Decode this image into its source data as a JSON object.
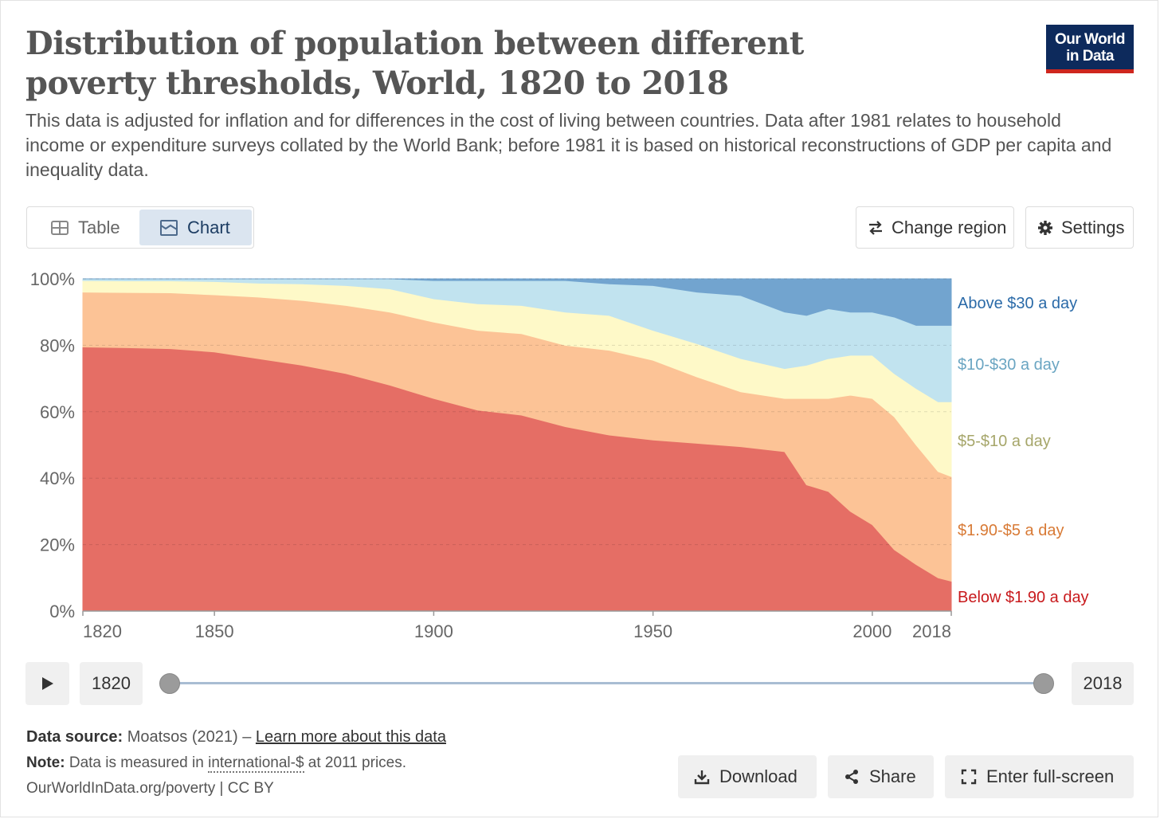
{
  "header": {
    "title": "Distribution of population between different poverty thresholds, World, 1820 to 2018",
    "subtitle": "This data is adjusted for inflation and for differences in the cost of living between countries. Data after 1981 relates to household income or expenditure surveys collated by the World Bank; before 1981 it is based on historical reconstructions of GDP per capita and inequality data.",
    "logo_line1": "Our World",
    "logo_line2": "in Data"
  },
  "tabs": {
    "table": "Table",
    "chart": "Chart"
  },
  "controls": {
    "change_region": "Change region",
    "settings": "Settings"
  },
  "timeline": {
    "start": "1820",
    "end": "2018"
  },
  "footer": {
    "source_label": "Data source:",
    "source_text": "Moatsos (2021) –",
    "learn_more": "Learn more about this data",
    "note_label": "Note:",
    "note_pre": "Data is measured in",
    "note_link": "international-$",
    "note_post": "at 2011 prices.",
    "url": "OurWorldInData.org/poverty | CC BY",
    "download": "Download",
    "share": "Share",
    "fullscreen": "Enter full-screen"
  },
  "icons": [
    "table-icon",
    "chart-icon",
    "swap-arrows-icon",
    "gear-icon",
    "play-icon",
    "download-icon",
    "share-icon",
    "fullscreen-icon"
  ],
  "chart_data": {
    "type": "area",
    "stacked": true,
    "x": [
      1820,
      1830,
      1840,
      1850,
      1860,
      1870,
      1880,
      1890,
      1900,
      1910,
      1920,
      1930,
      1940,
      1950,
      1960,
      1970,
      1980,
      1985,
      1990,
      1995,
      2000,
      2005,
      2010,
      2015,
      2018
    ],
    "series": [
      {
        "name": "Below $1.90 a day",
        "color": "#e56e65",
        "label_color": "#c8191c",
        "values": [
          79.5,
          79.3,
          79.0,
          78.0,
          76.0,
          74.0,
          71.5,
          68.0,
          64.0,
          60.5,
          59.0,
          55.5,
          53.0,
          51.5,
          50.5,
          49.5,
          48.0,
          38.0,
          36.0,
          30.0,
          26.0,
          18.5,
          14.0,
          10.0,
          9.0
        ]
      },
      {
        "name": "$1.90-$5 a day",
        "color": "#fcc396",
        "label_color": "#d87a35",
        "values": [
          16.5,
          16.6,
          16.8,
          17.2,
          18.5,
          19.5,
          20.5,
          22.0,
          23.0,
          24.0,
          24.5,
          24.5,
          25.5,
          24.0,
          20.0,
          16.5,
          16.0,
          26.0,
          28.0,
          35.0,
          38.0,
          40.0,
          36.0,
          32.0,
          31.5
        ]
      },
      {
        "name": "$5-$10 a day",
        "color": "#fef9c8",
        "label_color": "#a6a66a",
        "values": [
          3.5,
          3.5,
          3.6,
          4.0,
          4.2,
          5.0,
          6.0,
          7.0,
          7.0,
          8.0,
          8.5,
          10.0,
          10.5,
          9.0,
          10.0,
          10.0,
          9.0,
          10.0,
          12.0,
          12.0,
          13.0,
          13.0,
          17.0,
          21.0,
          22.5
        ]
      },
      {
        "name": "$10-$30 a day",
        "color": "#c1e3ef",
        "label_color": "#6aa5c2",
        "values": [
          0.5,
          0.6,
          0.6,
          0.8,
          1.3,
          1.5,
          2.0,
          3.0,
          5.5,
          7.0,
          7.5,
          9.5,
          9.5,
          13.5,
          15.5,
          19.0,
          17.0,
          15.0,
          15.0,
          13.0,
          13.0,
          17.0,
          19.0,
          23.0,
          23.0
        ]
      },
      {
        "name": "Above $30 a day",
        "color": "#72a4cf",
        "label_color": "#2a6aa8",
        "values": [
          0.0,
          0.0,
          0.0,
          0.0,
          0.0,
          0.0,
          0.0,
          0.0,
          0.5,
          0.5,
          0.5,
          0.5,
          1.5,
          2.0,
          4.0,
          5.0,
          10.0,
          11.0,
          9.0,
          10.0,
          10.0,
          11.5,
          14.0,
          14.0,
          14.0
        ]
      }
    ],
    "xticks": [
      1820,
      1850,
      1900,
      1950,
      2000,
      2018
    ],
    "yticks": [
      "0%",
      "20%",
      "40%",
      "60%",
      "80%",
      "100%"
    ],
    "xlim": [
      1820,
      2018
    ],
    "ylim": [
      0,
      100
    ],
    "grid": true,
    "legend_placement": "right, inline labels"
  }
}
